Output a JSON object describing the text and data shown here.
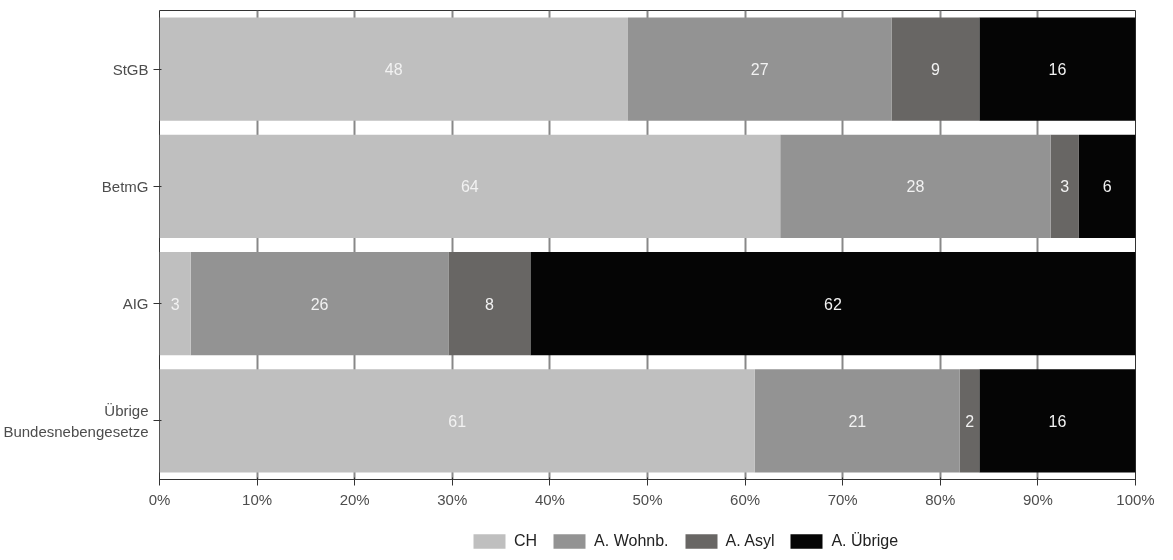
{
  "chart_data": {
    "type": "bar",
    "orientation": "horizontal",
    "stacked": true,
    "categories": [
      "StGB",
      "BetmG",
      "AIG",
      "Übrige\nBundesnebengesetze"
    ],
    "series": [
      {
        "name": "CH",
        "color": "#bfbfbf",
        "values": [
          48.0,
          63.6,
          3.2,
          61.0
        ],
        "value_labels": [
          "48",
          "64",
          "3",
          "61"
        ]
      },
      {
        "name": "A. Wohnb.",
        "color": "#939393",
        "values": [
          27.0,
          27.7,
          26.4,
          21.0
        ],
        "value_labels": [
          "27",
          "28",
          "26",
          "21"
        ]
      },
      {
        "name": "A. Asyl",
        "color": "#686664",
        "values": [
          9.0,
          2.9,
          8.4,
          2.0
        ],
        "value_labels": [
          "9",
          "3",
          "8",
          "2"
        ]
      },
      {
        "name": "A. Übrige",
        "color": "#050505",
        "values": [
          16.0,
          5.8,
          62.0,
          16.0
        ],
        "value_labels": [
          "16",
          "6",
          "62",
          "16"
        ]
      }
    ],
    "xlim": [
      0,
      100
    ],
    "xticks": [
      {
        "value": 0,
        "label": "0%"
      },
      {
        "value": 10,
        "label": "10%"
      },
      {
        "value": 20,
        "label": "20%"
      },
      {
        "value": 30,
        "label": "30%"
      },
      {
        "value": 40,
        "label": "40%"
      },
      {
        "value": 50,
        "label": "50%"
      },
      {
        "value": 60,
        "label": "60%"
      },
      {
        "value": 70,
        "label": "70%"
      },
      {
        "value": 80,
        "label": "80%"
      },
      {
        "value": 90,
        "label": "90%"
      },
      {
        "value": 100,
        "label": "100%"
      }
    ],
    "grid": "x",
    "legend": "bottom"
  }
}
